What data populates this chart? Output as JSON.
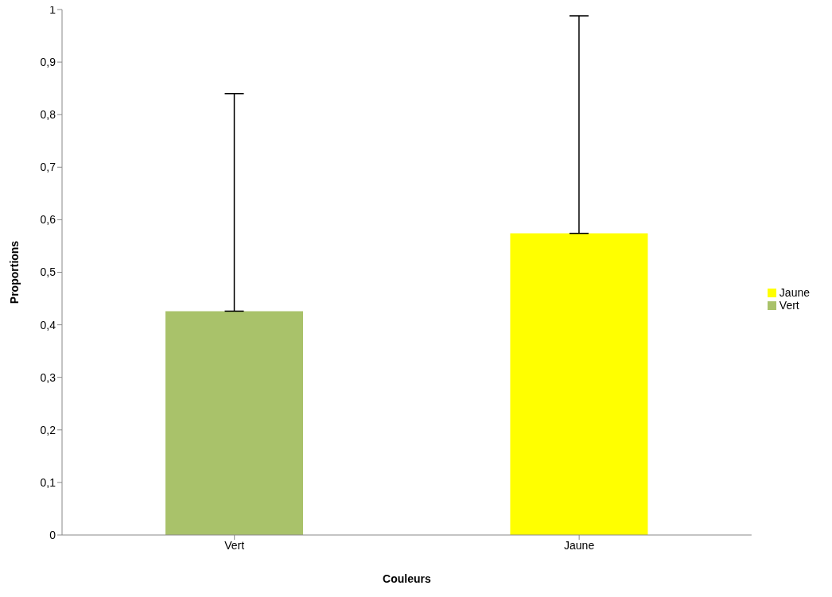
{
  "chart_data": {
    "type": "bar",
    "xlabel": "Couleurs",
    "ylabel": "Proportions",
    "categories": [
      "Vert",
      "Jaune"
    ],
    "series": [
      {
        "name": "Vert",
        "color": "#a9c26a",
        "values": [
          0.426,
          null
        ],
        "errors": [
          [
            0.426,
            0.84
          ],
          null
        ]
      },
      {
        "name": "Jaune",
        "color": "#ffff00",
        "values": [
          null,
          0.574
        ],
        "errors": [
          null,
          [
            0.574,
            0.988
          ]
        ]
      }
    ],
    "stacked": true,
    "ylim": [
      0,
      1
    ],
    "yticks": [
      {
        "value": 0,
        "label": "0"
      },
      {
        "value": 0.1,
        "label": "0,1"
      },
      {
        "value": 0.2,
        "label": "0,2"
      },
      {
        "value": 0.3,
        "label": "0,3"
      },
      {
        "value": 0.4,
        "label": "0,4"
      },
      {
        "value": 0.5,
        "label": "0,5"
      },
      {
        "value": 0.6,
        "label": "0,6"
      },
      {
        "value": 0.7,
        "label": "0,7"
      },
      {
        "value": 0.8,
        "label": "0,8"
      },
      {
        "value": 0.9,
        "label": "0,9"
      },
      {
        "value": 1,
        "label": "1"
      }
    ],
    "grid": false,
    "legend": "right"
  }
}
